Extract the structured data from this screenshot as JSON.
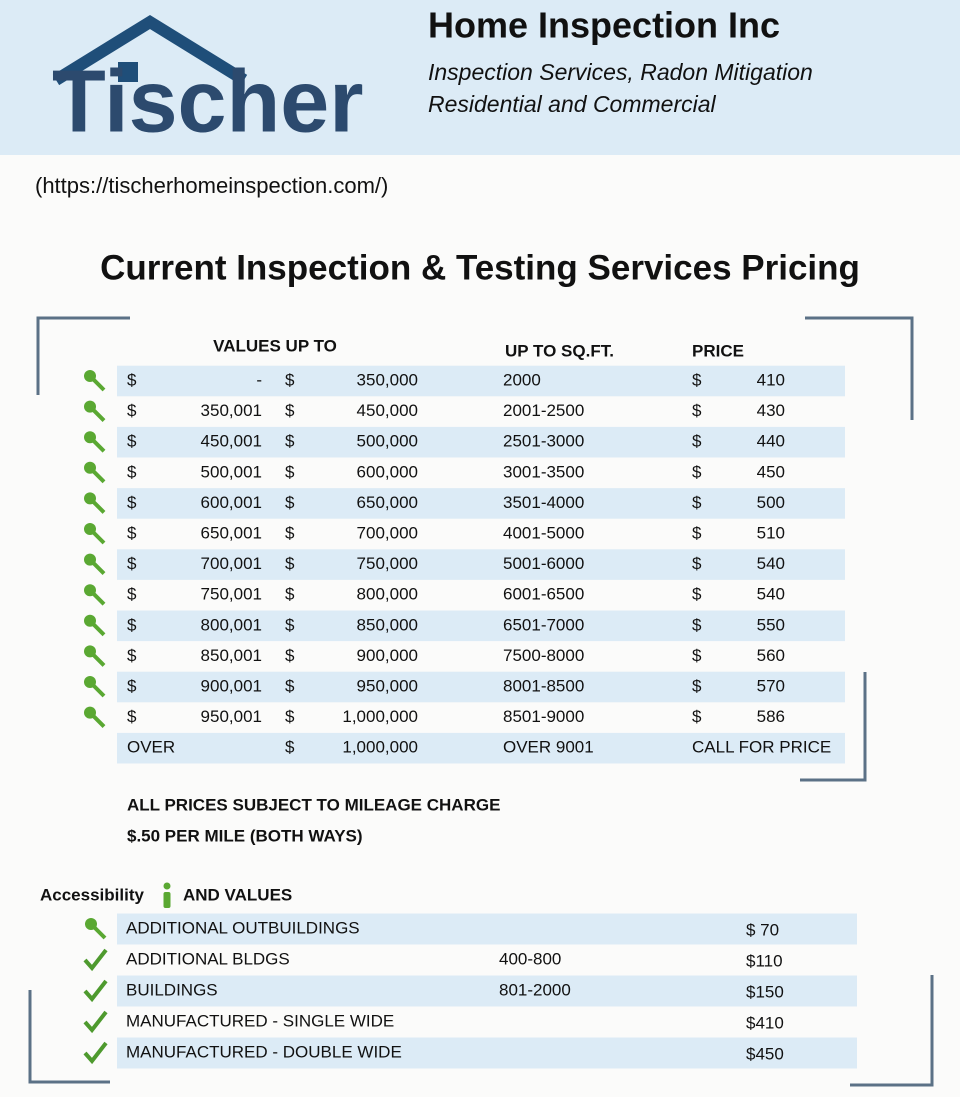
{
  "header": {
    "logo": "Tischer",
    "company": "Home Inspection Inc",
    "taglines": [
      "Inspection Services, Radon Mitigation",
      "Residential and Commercial"
    ]
  },
  "url": "(https://tischerhomeinspection.com/)",
  "title": "Current Inspection & Testing Services Pricing",
  "pricing_table": {
    "headers": {
      "values": "VALUES UP TO",
      "sqft": "UP TO SQ.FT.",
      "price": "PRICE"
    },
    "rows": [
      {
        "from_currency": "$",
        "from": "-",
        "to_currency": "$",
        "to": "350,000",
        "sqft": "2000",
        "price_currency": "$",
        "price": "410"
      },
      {
        "from_currency": "$",
        "from": "350,001",
        "to_currency": "$",
        "to": "450,000",
        "sqft": "2001-2500",
        "price_currency": "$",
        "price": "430"
      },
      {
        "from_currency": "$",
        "from": "450,001",
        "to_currency": "$",
        "to": "500,000",
        "sqft": "2501-3000",
        "price_currency": "$",
        "price": "440"
      },
      {
        "from_currency": "$",
        "from": "500,001",
        "to_currency": "$",
        "to": "600,000",
        "sqft": "3001-3500",
        "price_currency": "$",
        "price": "450"
      },
      {
        "from_currency": "$",
        "from": "600,001",
        "to_currency": "$",
        "to": "650,000",
        "sqft": "3501-4000",
        "price_currency": "$",
        "price": "500"
      },
      {
        "from_currency": "$",
        "from": "650,001",
        "to_currency": "$",
        "to": "700,000",
        "sqft": "4001-5000",
        "price_currency": "$",
        "price": "510"
      },
      {
        "from_currency": "$",
        "from": "700,001",
        "to_currency": "$",
        "to": "750,000",
        "sqft": "5001-6000",
        "price_currency": "$",
        "price": "540"
      },
      {
        "from_currency": "$",
        "from": "750,001",
        "to_currency": "$",
        "to": "800,000",
        "sqft": "6001-6500",
        "price_currency": "$",
        "price": "540"
      },
      {
        "from_currency": "$",
        "from": "800,001",
        "to_currency": "$",
        "to": "850,000",
        "sqft": "6501-7000",
        "price_currency": "$",
        "price": "550"
      },
      {
        "from_currency": "$",
        "from": "850,001",
        "to_currency": "$",
        "to": "900,000",
        "sqft": "7500-8000",
        "price_currency": "$",
        "price": "560"
      },
      {
        "from_currency": "$",
        "from": "900,001",
        "to_currency": "$",
        "to": "950,000",
        "sqft": "8001-8500",
        "price_currency": "$",
        "price": "570"
      },
      {
        "from_currency": "$",
        "from": "950,001",
        "to_currency": "$",
        "to": "1,000,000",
        "sqft": "8501-9000",
        "price_currency": "$",
        "price": "586"
      },
      {
        "from": "OVER",
        "to_currency": "$",
        "to": "1,000,000",
        "sqft": "OVER 9001",
        "price": "CALL FOR PRICE"
      }
    ]
  },
  "notes": [
    "ALL PRICES SUBJECT TO MILEAGE CHARGE",
    "$.50 PER MILE (BOTH WAYS)"
  ],
  "accessibility": {
    "label": "Accessibility",
    "label2": "AND VALUES",
    "rows": [
      {
        "icon": "key",
        "item": "ADDITIONAL OUTBUILDINGS",
        "price": "$ 70"
      },
      {
        "icon": "check",
        "item": "ADDITIONAL BLDGS",
        "range": "400-800",
        "price": "$110"
      },
      {
        "icon": "check",
        "item": "BUILDINGS",
        "range": "801-2000",
        "price": "$150"
      },
      {
        "icon": "check",
        "item": "MANUFACTURED - SINGLE WIDE",
        "price": "$410"
      },
      {
        "icon": "check",
        "item": "MANUFACTURED - DOUBLE WIDE",
        "price": "$450"
      }
    ]
  }
}
